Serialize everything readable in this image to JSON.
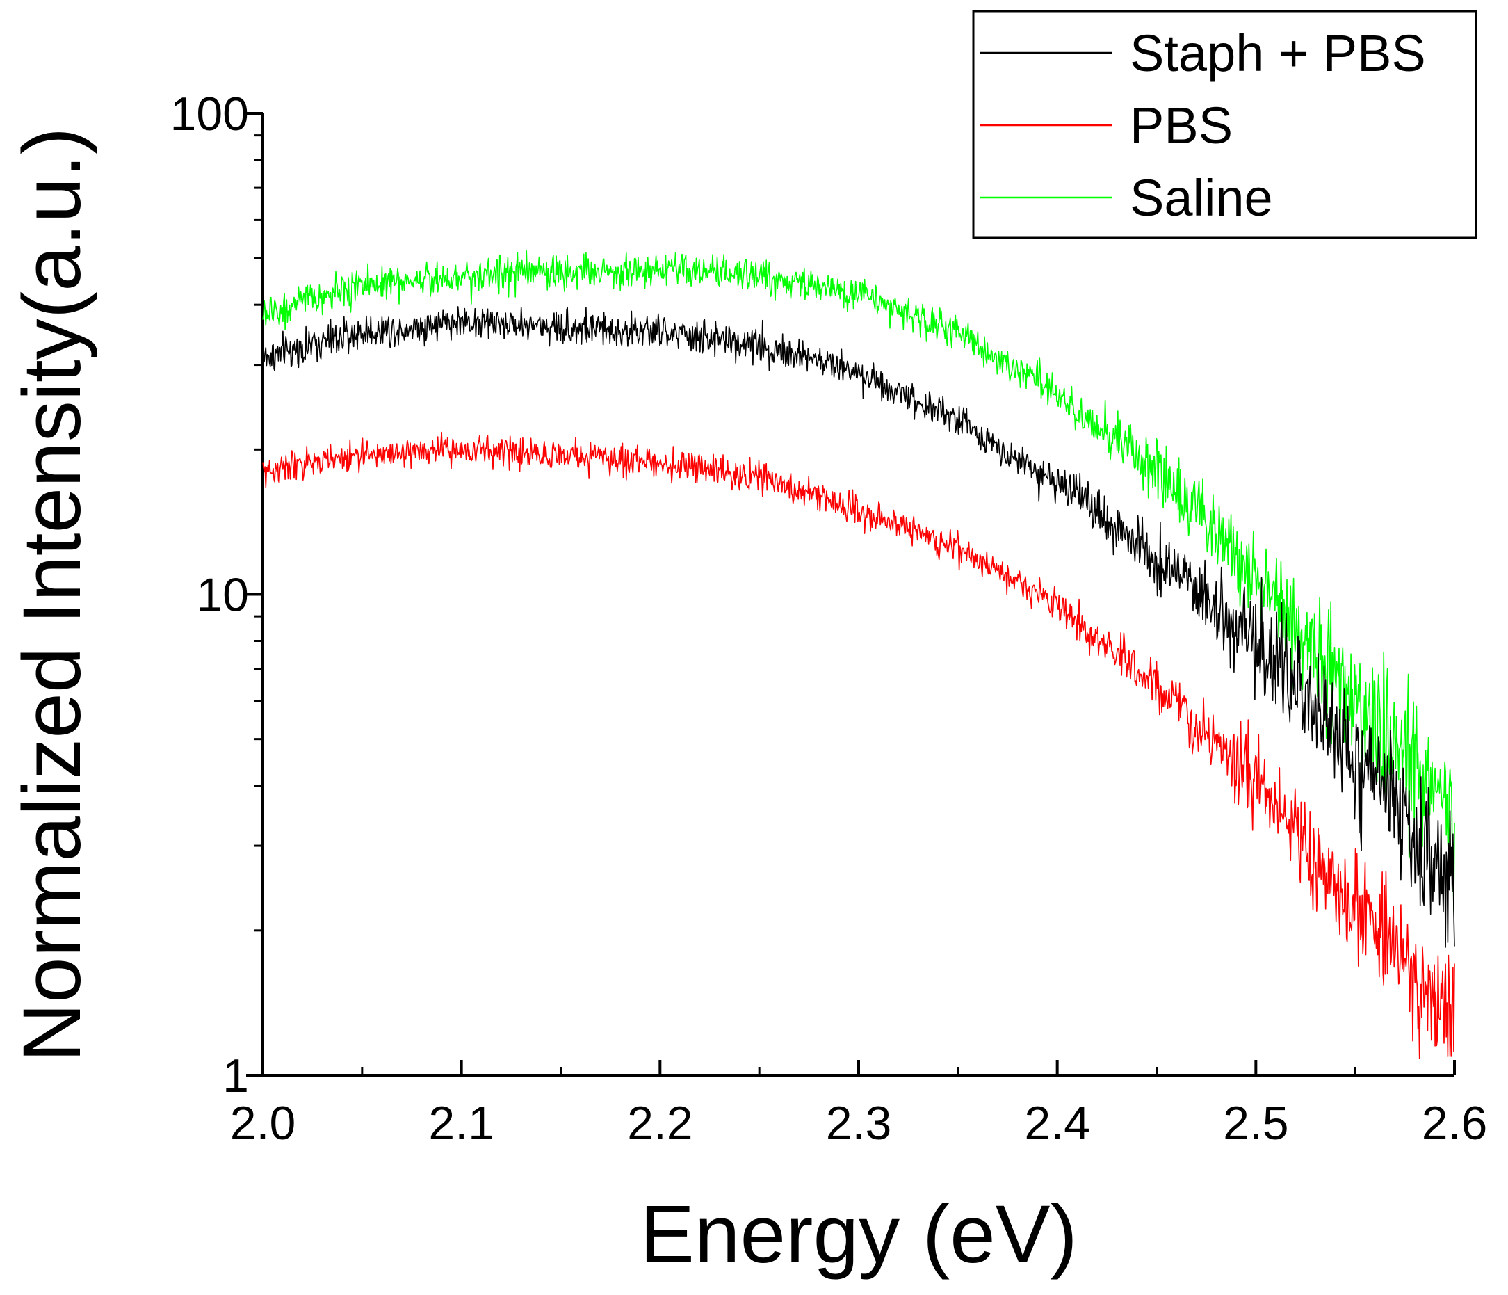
{
  "chart_data": {
    "type": "line",
    "title": "",
    "xlabel": "Energy (eV)",
    "ylabel": "Normalized Intensity(a.u.)",
    "xlim": [
      2.0,
      2.6
    ],
    "ylim": [
      1,
      100
    ],
    "yscale": "log",
    "grid": false,
    "legend_position": "top-right",
    "x_ticks": [
      2.0,
      2.1,
      2.2,
      2.3,
      2.4,
      2.5,
      2.6
    ],
    "x_tick_labels": [
      "2.0",
      "2.1",
      "2.2",
      "2.3",
      "2.4",
      "2.5",
      "2.6"
    ],
    "y_ticks": [
      1,
      10,
      100
    ],
    "y_tick_labels": [
      "1",
      "10",
      "100"
    ],
    "series": [
      {
        "name": "Staph + PBS",
        "color": "#000000",
        "noise": 0.07,
        "x": [
          2.0,
          2.05,
          2.1,
          2.15,
          2.2,
          2.25,
          2.3,
          2.35,
          2.4,
          2.45,
          2.5,
          2.55,
          2.6
        ],
        "y": [
          31,
          35,
          37,
          36,
          35,
          33,
          29,
          23,
          17,
          12,
          8,
          4.5,
          2.5
        ]
      },
      {
        "name": "PBS",
        "color": "#ff0000",
        "noise": 0.06,
        "x": [
          2.0,
          2.05,
          2.1,
          2.15,
          2.2,
          2.25,
          2.3,
          2.35,
          2.4,
          2.45,
          2.5,
          2.55,
          2.6
        ],
        "y": [
          18,
          19.5,
          20,
          19.5,
          18.8,
          17.5,
          15,
          12.5,
          9.5,
          6.5,
          4,
          2.2,
          1.3
        ]
      },
      {
        "name": "Saline",
        "color": "#00ff00",
        "noise": 0.07,
        "x": [
          2.0,
          2.05,
          2.1,
          2.15,
          2.2,
          2.25,
          2.3,
          2.35,
          2.4,
          2.45,
          2.5,
          2.55,
          2.6
        ],
        "y": [
          38,
          44,
          46,
          47,
          47,
          46,
          42,
          35,
          26,
          18,
          11,
          6,
          3.5
        ]
      }
    ]
  }
}
